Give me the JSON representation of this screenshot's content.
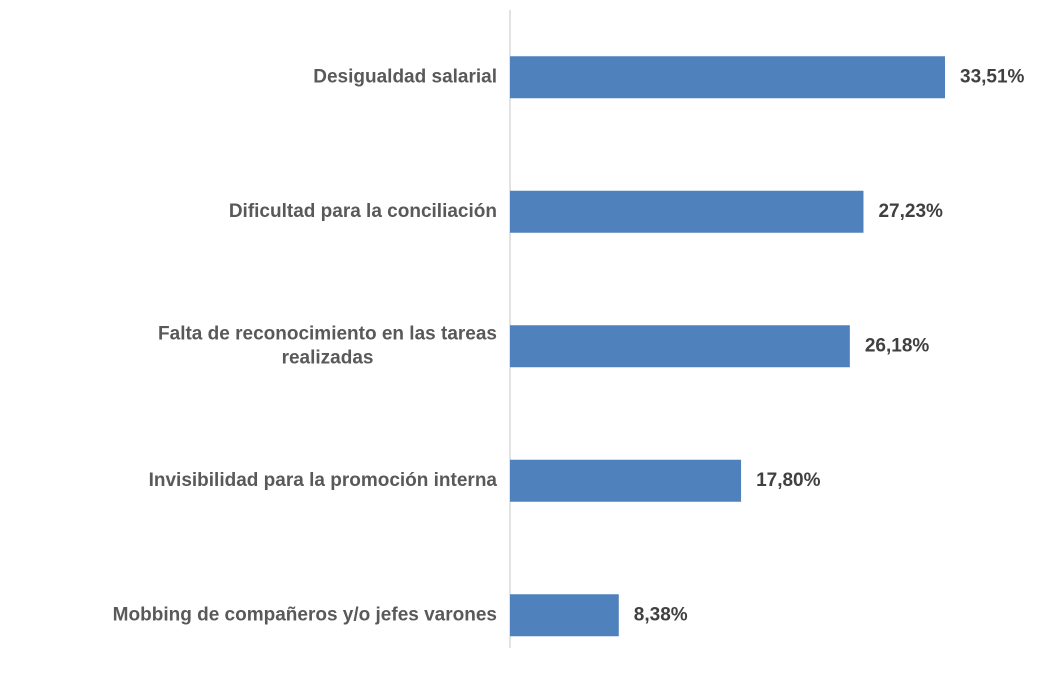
{
  "chart_data": {
    "type": "barh",
    "categories": [
      "Desigualdad salarial",
      "Dificultad para la conciliación",
      [
        "Falta de reconocimiento en las tareas",
        "realizadas"
      ],
      "Invisibilidad para la promoción interna",
      "Mobbing de compañeros y/o jefes varones"
    ],
    "values": [
      33.51,
      27.23,
      26.18,
      17.8,
      8.38
    ],
    "value_labels": [
      "33,51%",
      "27,23%",
      "26,18%",
      "17,80%",
      "8,38%"
    ],
    "color": "#4f81bd"
  }
}
